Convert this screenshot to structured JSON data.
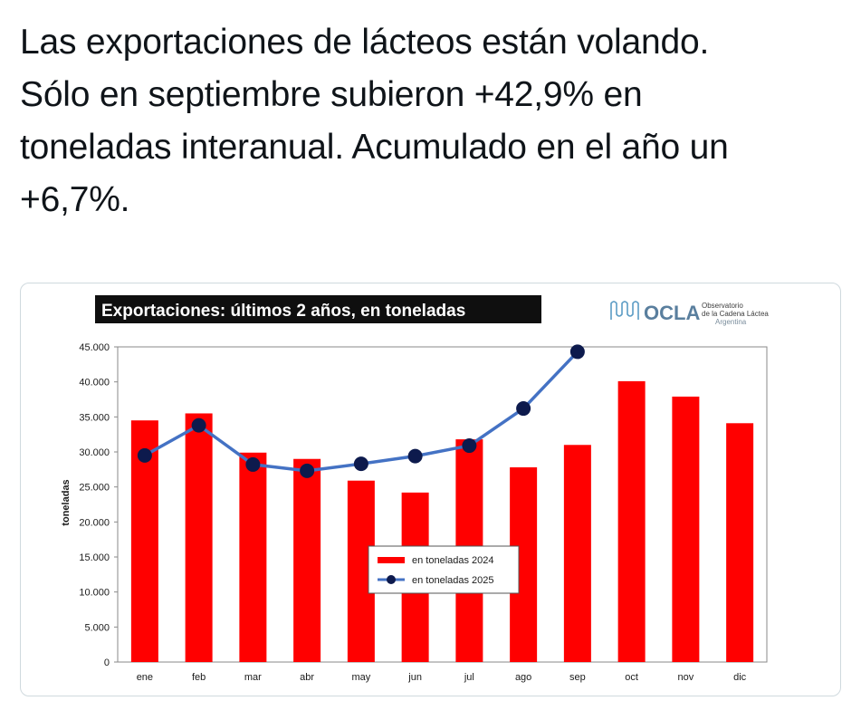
{
  "tweet": {
    "lines": [
      "Las exportaciones de lácteos están volando.",
      "Sólo en septiembre subieron +42,9% en",
      "toneladas interanual. Acumulado en el año un",
      "+6,7%."
    ]
  },
  "logo": {
    "name": "OCLA",
    "line1": "Observatorio",
    "line2": "de la Cadena Láctea",
    "line3": "Argentina"
  },
  "colors": {
    "bar": "#ff0000",
    "line": "#4472c4",
    "marker": "#0d1a4d",
    "title_bg": "#0f0f0f"
  },
  "chart_data": {
    "type": "bar",
    "title": "Exportaciones: últimos 2 años, en toneladas",
    "ylabel": "toneladas",
    "xlabel": "",
    "ylim": [
      0,
      45000
    ],
    "grid": false,
    "legend_position": "center",
    "categories": [
      "ene",
      "feb",
      "mar",
      "abr",
      "may",
      "jun",
      "jul",
      "ago",
      "sep",
      "oct",
      "nov",
      "dic"
    ],
    "yticks": [
      "0",
      "5.000",
      "10.000",
      "15.000",
      "20.000",
      "25.000",
      "30.000",
      "35.000",
      "40.000",
      "45.000"
    ],
    "series": [
      {
        "name": "en toneladas 2024",
        "type": "bar",
        "values": [
          34500,
          35500,
          29900,
          29000,
          25900,
          24200,
          31800,
          27800,
          31000,
          40100,
          37900,
          34100
        ]
      },
      {
        "name": "en toneladas 2025",
        "type": "line",
        "values": [
          29500,
          33800,
          28200,
          27300,
          28300,
          29400,
          30900,
          36200,
          44300,
          null,
          null,
          null
        ]
      }
    ]
  }
}
